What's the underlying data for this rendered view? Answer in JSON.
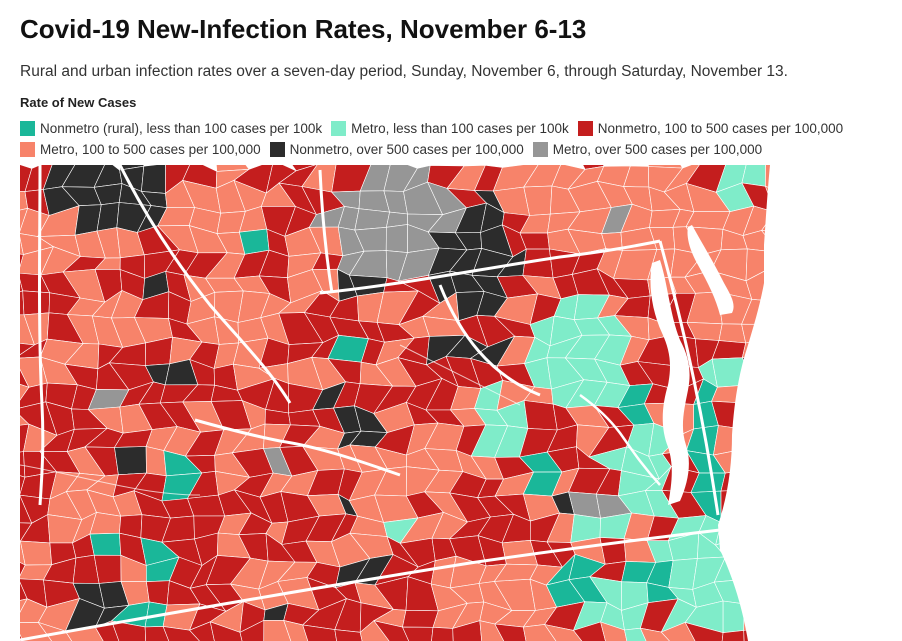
{
  "title": "Covid-19 New-Infection Rates, November 6-13",
  "subtitle": "Rural and urban infection rates over a seven-day period, Sunday, November 6, through Saturday, November 13.",
  "legend": {
    "title": "Rate of New Cases",
    "rows": [
      [
        {
          "label": "Nonmetro (rural), less than 100 cases per 100k",
          "color": "#1ab799"
        },
        {
          "label": "Metro, less than 100 cases per 100k",
          "color": "#7fecc9"
        },
        {
          "label": "Nonmetro, 100 to 500 cases per 100,000",
          "color": "#c41e1e"
        }
      ],
      [
        {
          "label": "Metro, 100 to 500 cases per 100,000",
          "color": "#f7836a"
        },
        {
          "label": "Nonmetro, over 500 cases per 100,000",
          "color": "#2c2c2c"
        },
        {
          "label": "Metro, over 500 cases per 100,000",
          "color": "#969696"
        }
      ]
    ]
  },
  "map": {
    "categories": {
      "rural_low": "#1ab799",
      "metro_low": "#7fecc9",
      "rural_mid": "#c41e1e",
      "metro_mid": "#f7836a",
      "rural_high": "#2c2c2c",
      "metro_high": "#969696"
    },
    "water_color": "#ffffff"
  }
}
